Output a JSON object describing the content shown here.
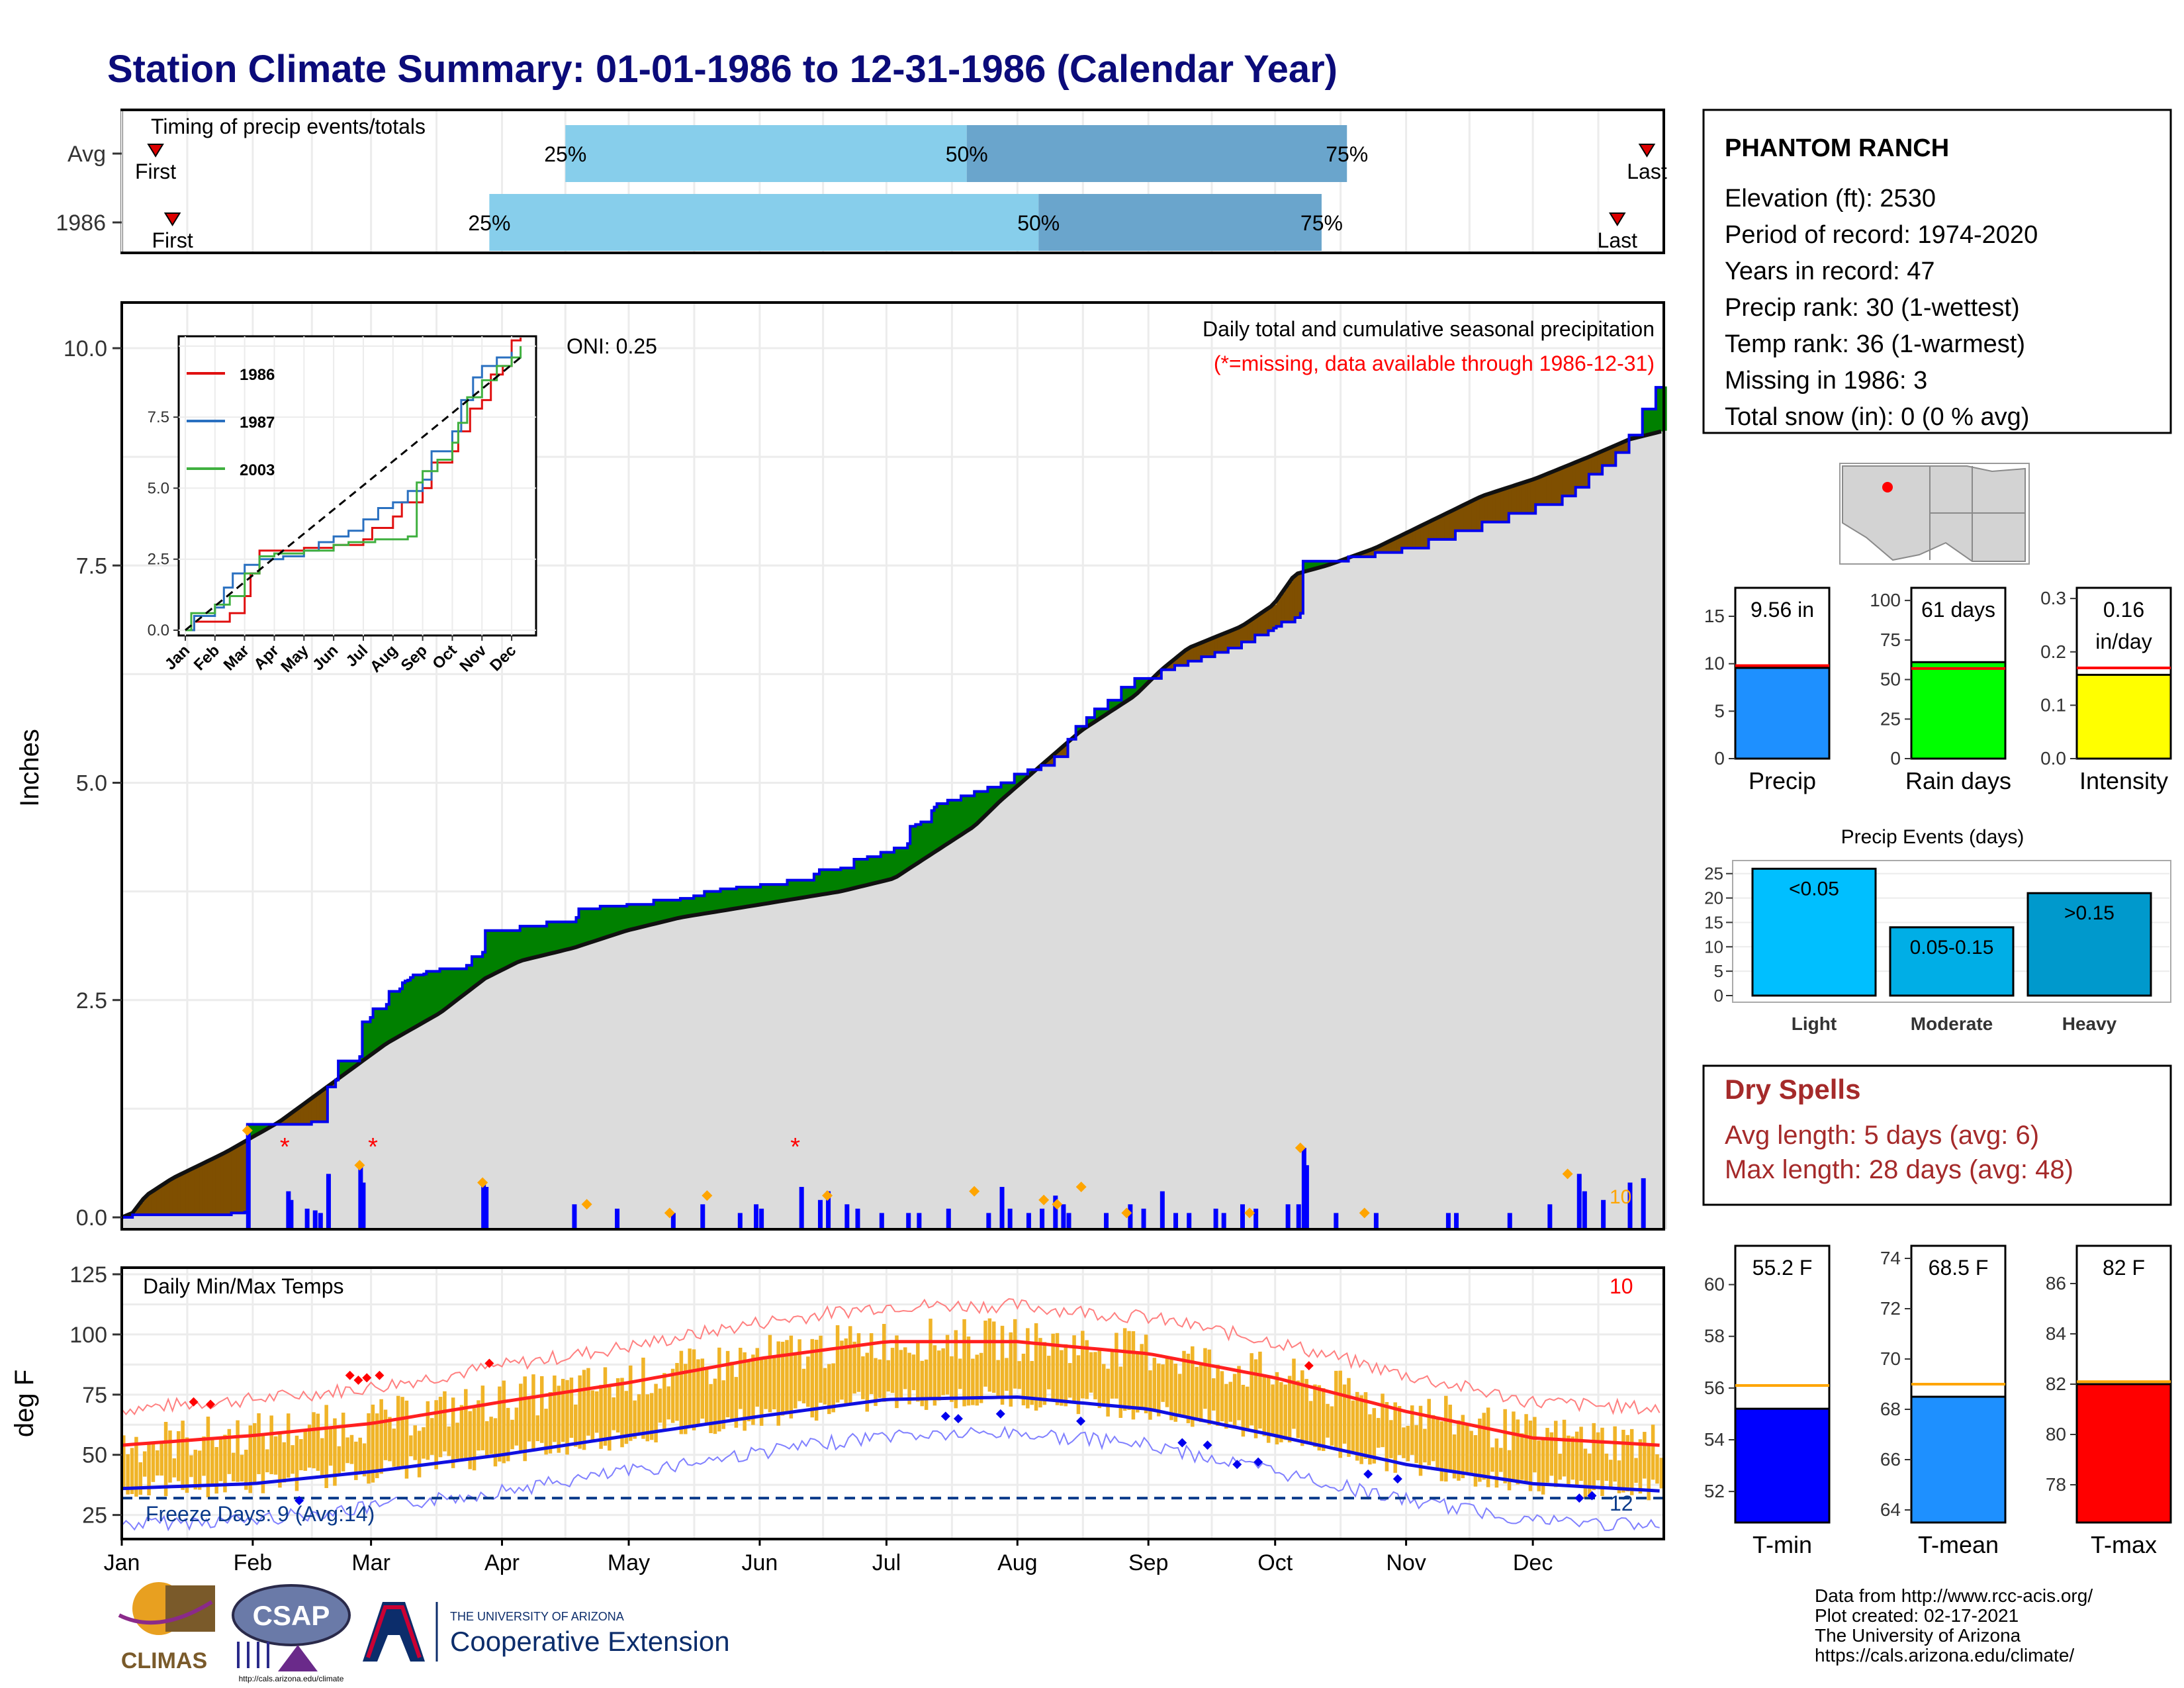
{
  "title": "Station Climate Summary: 01-01-1986 to 12-31-1986 (Calendar Year)",
  "colors": {
    "title": "#0b0b7a",
    "cum_fill": "#dcdcdc",
    "cum_line": "#111111",
    "obs_line": "#0000ee",
    "surplus": "#008000",
    "deficit": "#7f4f00",
    "timing_light": "#87ceeb",
    "timing_dark": "#6aa5cc",
    "bar_orange": "#ffa500",
    "missing": "#ff0000",
    "temp_bar": "#f0b428",
    "tmax_line": "#ff2020",
    "tmin_line": "#1010e0",
    "freeze_line": "#0a3a8a",
    "dry_text": "#a52a2a"
  },
  "timing_panel": {
    "title": "Timing of precip events/totals",
    "rows": [
      {
        "label": "Avg",
        "first_doy": 9,
        "last_doy": 362,
        "p25": 106,
        "p50": 201,
        "p75": 291,
        "first_label": "First",
        "last_label": "Last",
        "p25_label": "25%",
        "p50_label": "50%",
        "p75_label": "75%"
      },
      {
        "label": "1986",
        "first_doy": 13,
        "last_doy": 355,
        "p25": 88,
        "p50": 218,
        "p75": 285,
        "first_label": "First",
        "last_label": "Last",
        "p25_label": "25%",
        "p50_label": "50%",
        "p75_label": "75%"
      }
    ]
  },
  "precip_chart": {
    "ylabel": "Inches",
    "yticks": [
      "0.0",
      "2.5",
      "5.0",
      "7.5",
      "10.0"
    ],
    "ylim": [
      0,
      10.5
    ],
    "oni": "ONI: 0.25",
    "subtitle": "Daily total and cumulative seasonal precipitation",
    "missing_note": "(*=missing, data available through 1986-12-31)",
    "corner_value": "10"
  },
  "chart_data": [
    {
      "type": "area",
      "name": "cumulative_precip",
      "x_units": "day of year 1986",
      "average_cumulative": [
        [
          1,
          0
        ],
        [
          5,
          0.05
        ],
        [
          10,
          0.25
        ],
        [
          20,
          0.45
        ],
        [
          40,
          0.75
        ],
        [
          60,
          1.1
        ],
        [
          80,
          1.55
        ],
        [
          100,
          2.0
        ],
        [
          120,
          2.35
        ],
        [
          137,
          2.75
        ],
        [
          150,
          2.95
        ],
        [
          170,
          3.1
        ],
        [
          180,
          3.2
        ],
        [
          190,
          3.3
        ],
        [
          210,
          3.45
        ],
        [
          230,
          3.55
        ],
        [
          250,
          3.65
        ],
        [
          270,
          3.75
        ],
        [
          290,
          3.9
        ],
        [
          300,
          4.1
        ],
        [
          320,
          4.5
        ],
        [
          330,
          4.8
        ],
        [
          345,
          5.2
        ],
        [
          360,
          5.6
        ],
        [
          380,
          6.0
        ],
        [
          390,
          6.3
        ],
        [
          400,
          6.55
        ],
        [
          420,
          6.8
        ],
        [
          432,
          7.05
        ],
        [
          440,
          7.4
        ],
        [
          452,
          7.5
        ],
        [
          470,
          7.7
        ],
        [
          490,
          8.0
        ],
        [
          510,
          8.3
        ],
        [
          530,
          8.5
        ],
        [
          550,
          8.75
        ],
        [
          565,
          8.95
        ],
        [
          578,
          9.05
        ]
      ],
      "observed_cumulative": [
        [
          1,
          0
        ],
        [
          5,
          0.03
        ],
        [
          42,
          0.05
        ],
        [
          47,
          0.06
        ],
        [
          48,
          1.07
        ],
        [
          71,
          1.07
        ],
        [
          72,
          1.1
        ],
        [
          78,
          1.5
        ],
        [
          81,
          1.58
        ],
        [
          82,
          1.8
        ],
        [
          90,
          1.85
        ],
        [
          91,
          2.25
        ],
        [
          94,
          2.3
        ],
        [
          95,
          2.4
        ],
        [
          100,
          2.45
        ],
        [
          101,
          2.6
        ],
        [
          105,
          2.63
        ],
        [
          106,
          2.7
        ],
        [
          107,
          2.72
        ],
        [
          108,
          2.73
        ],
        [
          109,
          2.76
        ],
        [
          110,
          2.79
        ],
        [
          114,
          2.8
        ],
        [
          115,
          2.83
        ],
        [
          120,
          2.86
        ],
        [
          130,
          2.9
        ],
        [
          132,
          3.0
        ],
        [
          136,
          3.05
        ],
        [
          137,
          3.3
        ],
        [
          140,
          3.3
        ],
        [
          150,
          3.35
        ],
        [
          160,
          3.4
        ],
        [
          171,
          3.45
        ],
        [
          172,
          3.55
        ],
        [
          180,
          3.58
        ],
        [
          190,
          3.6
        ],
        [
          200,
          3.65
        ],
        [
          210,
          3.67
        ],
        [
          215,
          3.7
        ],
        [
          219,
          3.75
        ],
        [
          225,
          3.78
        ],
        [
          230,
          3.78
        ],
        [
          231,
          3.8
        ],
        [
          240,
          3.83
        ],
        [
          250,
          3.88
        ],
        [
          260,
          3.95
        ],
        [
          262,
          4.0
        ],
        [
          270,
          4.02
        ],
        [
          275,
          4.12
        ],
        [
          280,
          4.15
        ],
        [
          285,
          4.2
        ],
        [
          290,
          4.25
        ],
        [
          295,
          4.3
        ],
        [
          296,
          4.5
        ],
        [
          298,
          4.52
        ],
        [
          300,
          4.55
        ],
        [
          303,
          4.55
        ],
        [
          304,
          4.68
        ],
        [
          305,
          4.72
        ],
        [
          306,
          4.76
        ],
        [
          310,
          4.8
        ],
        [
          315,
          4.85
        ],
        [
          320,
          4.9
        ],
        [
          325,
          4.95
        ],
        [
          330,
          5.0
        ],
        [
          335,
          5.1
        ],
        [
          340,
          5.15
        ],
        [
          345,
          5.2
        ],
        [
          350,
          5.3
        ],
        [
          355,
          5.5
        ],
        [
          358,
          5.65
        ],
        [
          362,
          5.75
        ],
        [
          365,
          5.85
        ],
        [
          370,
          5.95
        ],
        [
          375,
          6.1
        ],
        [
          380,
          6.2
        ],
        [
          390,
          6.3
        ],
        [
          395,
          6.35
        ],
        [
          400,
          6.4
        ],
        [
          405,
          6.45
        ],
        [
          410,
          6.5
        ],
        [
          415,
          6.55
        ],
        [
          420,
          6.62
        ],
        [
          425,
          6.7
        ],
        [
          430,
          6.75
        ],
        [
          432,
          6.78
        ],
        [
          433,
          6.8
        ],
        [
          435,
          6.85
        ],
        [
          440,
          6.9
        ],
        [
          442,
          6.95
        ],
        [
          443,
          7.55
        ],
        [
          450,
          7.55
        ],
        [
          460,
          7.6
        ],
        [
          470,
          7.65
        ],
        [
          480,
          7.7
        ],
        [
          490,
          7.8
        ],
        [
          500,
          7.9
        ],
        [
          510,
          8.0
        ],
        [
          520,
          8.1
        ],
        [
          530,
          8.2
        ],
        [
          540,
          8.3
        ],
        [
          545,
          8.4
        ],
        [
          550,
          8.55
        ],
        [
          555,
          8.65
        ],
        [
          560,
          8.8
        ],
        [
          565,
          9.0
        ],
        [
          570,
          9.3
        ],
        [
          575,
          9.55
        ],
        [
          578,
          9.56
        ]
      ],
      "ylim": [
        0,
        10.5
      ]
    },
    {
      "type": "bar",
      "name": "daily_precip",
      "x_units": "day of year 1986",
      "values": [
        [
          48,
          1.0
        ],
        [
          63,
          0.3
        ],
        [
          64,
          0.2
        ],
        [
          70,
          0.1
        ],
        [
          73,
          0.08
        ],
        [
          75,
          0.05
        ],
        [
          78,
          0.5
        ],
        [
          90,
          0.6
        ],
        [
          91,
          0.4
        ],
        [
          136,
          0.4
        ],
        [
          137,
          0.35
        ],
        [
          170,
          0.15
        ],
        [
          186,
          0.1
        ],
        [
          207,
          0.05
        ],
        [
          218,
          0.15
        ],
        [
          232,
          0.05
        ],
        [
          238,
          0.15
        ],
        [
          240,
          0.1
        ],
        [
          255,
          0.35
        ],
        [
          262,
          0.2
        ],
        [
          265,
          0.3
        ],
        [
          272,
          0.15
        ],
        [
          276,
          0.1
        ],
        [
          285,
          0.05
        ],
        [
          295,
          0.05
        ],
        [
          299,
          0.05
        ],
        [
          310,
          0.1
        ],
        [
          325,
          0.05
        ],
        [
          330,
          0.35
        ],
        [
          333,
          0.1
        ],
        [
          340,
          0.05
        ],
        [
          345,
          0.1
        ],
        [
          350,
          0.25
        ],
        [
          353,
          0.15
        ],
        [
          355,
          0.05
        ],
        [
          369,
          0.05
        ],
        [
          378,
          0.15
        ],
        [
          383,
          0.1
        ],
        [
          390,
          0.3
        ],
        [
          395,
          0.05
        ],
        [
          400,
          0.05
        ],
        [
          410,
          0.1
        ],
        [
          413,
          0.05
        ],
        [
          420,
          0.15
        ],
        [
          425,
          0.1
        ],
        [
          437,
          0.15
        ],
        [
          441,
          0.15
        ],
        [
          443,
          0.8
        ],
        [
          444,
          0.6
        ],
        [
          455,
          0.05
        ],
        [
          470,
          0.05
        ],
        [
          497,
          0.05
        ],
        [
          500,
          0.05
        ],
        [
          520,
          0.05
        ],
        [
          535,
          0.15
        ],
        [
          546,
          0.5
        ],
        [
          548,
          0.3
        ],
        [
          555,
          0.2
        ],
        [
          565,
          0.4
        ],
        [
          570,
          0.45
        ]
      ],
      "orange_markers": [
        [
          48,
          1.0
        ],
        [
          90,
          0.6
        ],
        [
          136,
          0.4
        ],
        [
          175,
          0.15
        ],
        [
          206,
          0.05
        ],
        [
          220,
          0.25
        ],
        [
          265,
          0.25
        ],
        [
          320,
          0.3
        ],
        [
          346,
          0.2
        ],
        [
          351,
          0.15
        ],
        [
          360,
          0.35
        ],
        [
          377,
          0.05
        ],
        [
          423,
          0.05
        ],
        [
          442,
          0.8
        ],
        [
          466,
          0.05
        ],
        [
          542,
          0.5
        ]
      ],
      "missing_days": [
        62,
        95,
        253
      ]
    },
    {
      "type": "line",
      "name": "daily_temps",
      "ylabel": "deg F",
      "series": [
        {
          "name": "Tmax normal",
          "values": [
            [
              1,
              54
            ],
            [
              32,
              58
            ],
            [
              60,
              63
            ],
            [
              91,
              72
            ],
            [
              121,
              80
            ],
            [
              152,
              90
            ],
            [
              182,
              97
            ],
            [
              213,
              97
            ],
            [
              244,
              92
            ],
            [
              274,
              82
            ],
            [
              305,
              68
            ],
            [
              335,
              57
            ],
            [
              365,
              54
            ]
          ]
        },
        {
          "name": "Tmin normal",
          "values": [
            [
              1,
              36
            ],
            [
              32,
              38
            ],
            [
              60,
              43
            ],
            [
              91,
              50
            ],
            [
              121,
              58
            ],
            [
              152,
              66
            ],
            [
              182,
              73
            ],
            [
              213,
              74
            ],
            [
              244,
              69
            ],
            [
              274,
              58
            ],
            [
              305,
              46
            ],
            [
              335,
              38
            ],
            [
              365,
              35
            ]
          ]
        }
      ],
      "freeze_threshold": 32,
      "ylim": [
        15,
        125
      ],
      "yticks": [
        "25",
        "50",
        "75",
        "100",
        "125"
      ]
    }
  ],
  "temp_chart": {
    "title": "Daily Min/Max Temps",
    "ylabel": "deg F",
    "freeze_label": "Freeze Days: 9 (Avg:14)",
    "count_top": "10",
    "count_bottom": "12"
  },
  "months": [
    "Jan",
    "Feb",
    "Mar",
    "Apr",
    "May",
    "Jun",
    "Jul",
    "Aug",
    "Sep",
    "Oct",
    "Nov",
    "Dec"
  ],
  "inset": {
    "legend": [
      "1986",
      "1987",
      "2003"
    ],
    "legend_colors": [
      "#e01010",
      "#2a70c0",
      "#40b040"
    ],
    "yticks": [
      "0.0",
      "2.5",
      "5.0",
      "7.5"
    ],
    "months": [
      "Jan",
      "Feb",
      "Mar",
      "Apr",
      "May",
      "Jun",
      "Jul",
      "Aug",
      "Sep",
      "Oct",
      "Nov",
      "Dec"
    ]
  },
  "station": {
    "name": "PHANTOM RANCH",
    "lines": [
      "Elevation (ft): 2530",
      "Period of record: 1974-2020",
      "Years in record: 47",
      "Precip rank: 30 (1-wettest)",
      "Temp rank: 36 (1-warmest)",
      "Missing in 1986: 3",
      "Total snow (in): 0 (0 % avg)"
    ]
  },
  "mini_bars": [
    {
      "label": "Precip",
      "value_text": "9.56 in",
      "value": 9.56,
      "avg": 9.8,
      "ymax": 18,
      "yticks": [
        "0",
        "5",
        "10",
        "15"
      ],
      "tickvals": [
        0,
        5,
        10,
        15
      ],
      "color": "#1e90ff"
    },
    {
      "label": "Rain days",
      "value_text": "61 days",
      "value": 61,
      "avg": 57,
      "ymax": 108,
      "yticks": [
        "0",
        "25",
        "50",
        "75",
        "100"
      ],
      "tickvals": [
        0,
        25,
        50,
        75,
        100
      ],
      "color": "#00ff00"
    },
    {
      "label": "Intensity",
      "value_text": "0.16",
      "value_text2": "in/day",
      "value": 0.157,
      "avg": 0.17,
      "ymax": 0.32,
      "yticks": [
        "0.0",
        "0.1",
        "0.2",
        "0.3"
      ],
      "tickvals": [
        0,
        0.1,
        0.2,
        0.3
      ],
      "color": "#ffff00"
    }
  ],
  "events": {
    "title": "Precip Events (days)",
    "yticks": [
      "0",
      "5",
      "10",
      "15",
      "20",
      "25"
    ],
    "bars": [
      {
        "label": "Light",
        "range": "<0.05",
        "value": 26,
        "color": "#00bfff"
      },
      {
        "label": "Moderate",
        "range": "0.05-0.15",
        "value": 14,
        "color": "#00aee6"
      },
      {
        "label": "Heavy",
        "range": ">0.15",
        "value": 21,
        "color": "#0099cc"
      }
    ]
  },
  "dry_spells": {
    "title": "Dry Spells",
    "avg_line": "Avg length: 5 days (avg: 6)",
    "max_line": "Max length: 28 days (avg: 48)"
  },
  "temp_bars": [
    {
      "label": "T-min",
      "value_text": "55.2 F",
      "value": 55.2,
      "avg": 56.1,
      "ylim": [
        50.8,
        61.5
      ],
      "yticks": [
        "52",
        "54",
        "56",
        "58",
        "60"
      ],
      "tickvals": [
        52,
        54,
        56,
        58,
        60
      ],
      "color": "#0000ff"
    },
    {
      "label": "T-mean",
      "value_text": "68.5 F",
      "value": 68.5,
      "avg": 69.0,
      "ylim": [
        63.5,
        74.5
      ],
      "yticks": [
        "64",
        "66",
        "68",
        "70",
        "72",
        "74"
      ],
      "tickvals": [
        64,
        66,
        68,
        70,
        72,
        74
      ],
      "color": "#1e90ff"
    },
    {
      "label": "T-max",
      "value_text": "82 F",
      "value": 82,
      "avg": 82.1,
      "ylim": [
        76.5,
        87.5
      ],
      "yticks": [
        "78",
        "80",
        "82",
        "84",
        "86"
      ],
      "tickvals": [
        78,
        80,
        82,
        84,
        86
      ],
      "color": "#ff0000"
    }
  ],
  "footer": {
    "credits": [
      "Data from http://www.rcc-acis.org/",
      "Plot created: 02-17-2021",
      "The University of Arizona",
      "https://cals.arizona.edu/climate/"
    ],
    "climas": "CLIMAS",
    "csap": "CSAP",
    "csap_url": "http://cals.arizona.edu/climate",
    "ua_top": "THE UNIVERSITY OF ARIZONA",
    "ua_bottom": "Cooperative Extension"
  }
}
